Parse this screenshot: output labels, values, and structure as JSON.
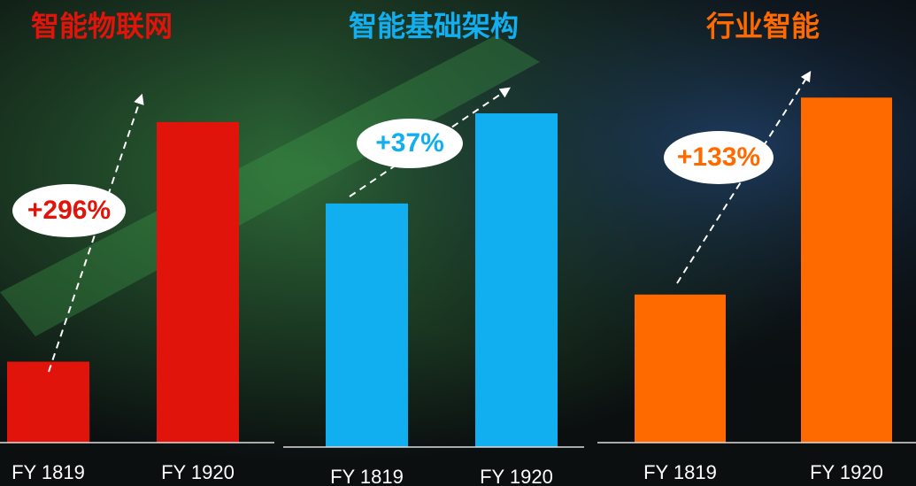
{
  "chart_data": [
    {
      "type": "bar",
      "title": "智能物联网",
      "categories": [
        "FY 1819",
        "FY 1920"
      ],
      "values": [
        100,
        396
      ],
      "color": "#e0140a",
      "ylim": [
        0,
        503
      ],
      "annotation": "+296%"
    },
    {
      "type": "bar",
      "title": "智能基础架构",
      "categories": [
        "FY 1819",
        "FY 1920"
      ],
      "values": [
        100,
        137
      ],
      "color": "#12aff0",
      "ylim": [
        0,
        169
      ],
      "annotation": "+37%"
    },
    {
      "type": "bar",
      "title": "行业智能",
      "categories": [
        "FY 1819",
        "FY 1920"
      ],
      "values": [
        100,
        233
      ],
      "color": "#ff6a00",
      "ylim": [
        0,
        275
      ],
      "annotation": "+133%"
    }
  ]
}
